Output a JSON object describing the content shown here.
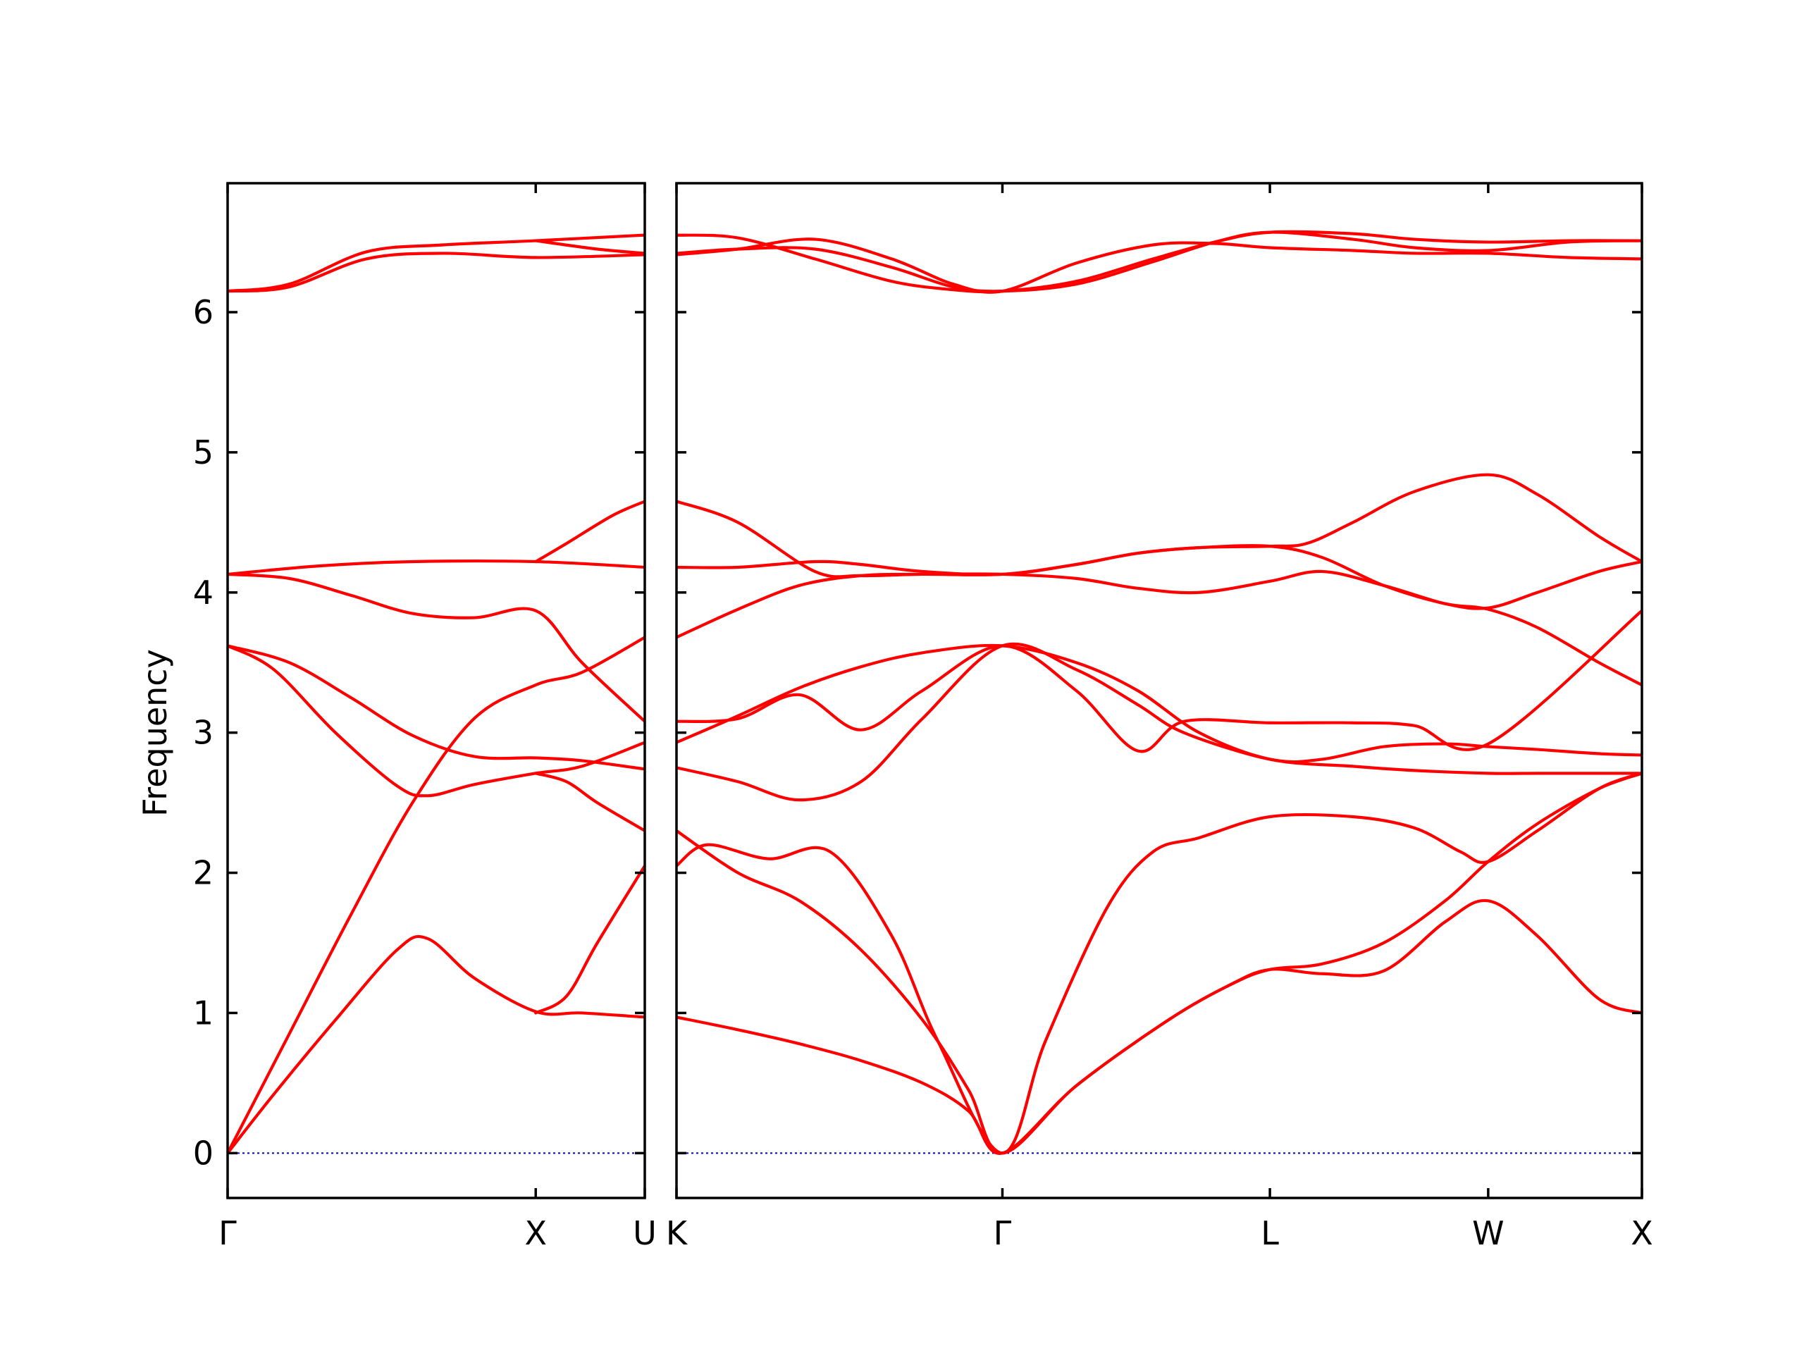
{
  "chart_data": {
    "type": "line",
    "ylabel": "Frequency",
    "xlabel": "",
    "ylim": [
      -0.32,
      6.92
    ],
    "yticks": [
      0,
      1,
      2,
      3,
      4,
      5,
      6
    ],
    "grid": false,
    "band_color": "#ff0000",
    "zero_line_color": "#0000cc",
    "segments": [
      {
        "labels": [
          {
            "x": 0,
            "text": "Γ"
          },
          {
            "x": 1.0,
            "text": "X"
          },
          {
            "x": 1.354,
            "text": "U"
          }
        ],
        "xlim": [
          0,
          1.354
        ],
        "bands": [
          {
            "x": [
              0,
              0.15,
              0.35,
              0.55,
              0.65,
              0.8,
              1.0,
              1.15,
              1.354
            ],
            "y": [
              0,
              0.42,
              0.95,
              1.45,
              1.53,
              1.25,
              1.01,
              1.0,
              0.97
            ]
          },
          {
            "x": [
              0,
              0.2,
              0.4,
              0.6,
              0.8,
              1.0,
              1.15,
              1.354
            ],
            "y": [
              0,
              0.85,
              1.7,
              2.5,
              3.1,
              3.34,
              3.43,
              3.68
            ]
          },
          {
            "x": [
              0,
              0.15,
              0.35,
              0.55,
              0.65,
              0.8,
              1.0,
              1.15,
              1.354
            ],
            "y": [
              3.62,
              3.45,
              3.0,
              2.62,
              2.55,
              2.63,
              2.71,
              2.76,
              2.93
            ]
          },
          {
            "x": [
              0,
              0.2,
              0.4,
              0.6,
              0.8,
              1.0,
              1.15,
              1.354
            ],
            "y": [
              3.62,
              3.5,
              3.25,
              2.98,
              2.83,
              2.82,
              2.8,
              2.74
            ]
          },
          {
            "x": [
              0,
              0.2,
              0.4,
              0.6,
              0.8,
              1.0,
              1.15,
              1.354
            ],
            "y": [
              4.13,
              4.1,
              3.98,
              3.85,
              3.82,
              3.87,
              3.5,
              3.08
            ]
          },
          {
            "x": [
              0,
              0.3,
              0.6,
              1.0,
              1.354
            ],
            "y": [
              4.13,
              4.19,
              4.22,
              4.22,
              4.18
            ]
          },
          {
            "x": [
              0,
              0.2,
              0.45,
              0.7,
              1.0,
              1.354
            ],
            "y": [
              6.15,
              6.2,
              6.43,
              6.48,
              6.51,
              6.55
            ]
          },
          {
            "x": [
              0,
              0.2,
              0.45,
              0.7,
              1.0,
              1.354
            ],
            "y": [
              6.15,
              6.18,
              6.38,
              6.42,
              6.39,
              6.41
            ]
          },
          {
            "x": [
              1.0,
              1.1,
              1.2,
              1.354
            ],
            "y": [
              1.0,
              1.12,
              1.5,
              2.05
            ]
          },
          {
            "x": [
              1.0,
              1.1,
              1.2,
              1.354
            ],
            "y": [
              2.71,
              2.65,
              2.5,
              2.3
            ]
          },
          {
            "x": [
              1.0,
              1.1,
              1.25,
              1.354
            ],
            "y": [
              4.22,
              4.35,
              4.55,
              4.65
            ]
          },
          {
            "x": [
              1.0,
              1.2,
              1.354
            ],
            "y": [
              6.51,
              6.45,
              6.42
            ]
          }
        ]
      },
      {
        "labels": [
          {
            "x": 0,
            "text": "K"
          },
          {
            "x": 1.06,
            "text": "Γ"
          },
          {
            "x": 1.93,
            "text": "L"
          },
          {
            "x": 2.64,
            "text": "W"
          },
          {
            "x": 3.14,
            "text": "X"
          }
        ],
        "xlim": [
          0,
          3.14
        ],
        "bands": [
          {
            "x": [
              0,
              0.2,
              0.4,
              0.6,
              0.8,
              0.95,
              1.06,
              1.3,
              1.6,
              1.8,
              1.93,
              2.1,
              2.3,
              2.5,
              2.64,
              2.8,
              3.0,
              3.14
            ],
            "y": [
              0.97,
              0.88,
              0.78,
              0.66,
              0.5,
              0.3,
              0,
              0.48,
              0.95,
              1.2,
              1.31,
              1.35,
              1.5,
              1.8,
              2.08,
              2.35,
              2.6,
              2.71
            ]
          },
          {
            "x": [
              0,
              0.2,
              0.4,
              0.6,
              0.8,
              0.95,
              1.06,
              1.3,
              1.6,
              1.8,
              1.93,
              2.1,
              2.3,
              2.5,
              2.64,
              2.8,
              3.0,
              3.14
            ],
            "y": [
              2.3,
              2.0,
              1.8,
              1.45,
              0.95,
              0.45,
              0,
              0.48,
              0.95,
              1.2,
              1.31,
              1.28,
              1.3,
              1.65,
              1.8,
              1.55,
              1.1,
              1.0
            ]
          },
          {
            "x": [
              0,
              0.1,
              0.3,
              0.5,
              0.7,
              0.85,
              1.06,
              1.2,
              1.4,
              1.55,
              1.7,
              1.93,
              2.2,
              2.4,
              2.55,
              2.64,
              2.8,
              3.0,
              3.14
            ],
            "y": [
              2.05,
              2.2,
              2.1,
              2.15,
              1.55,
              0.8,
              0,
              0.8,
              1.75,
              2.15,
              2.25,
              2.4,
              2.4,
              2.32,
              2.15,
              2.08,
              2.3,
              2.6,
              2.71
            ]
          },
          {
            "x": [
              0,
              0.2,
              0.4,
              0.6,
              0.8,
              1.06,
              1.3,
              1.5,
              1.65,
              1.93,
              2.1,
              2.3,
              2.5,
              2.64,
              2.8,
              3.0,
              3.14
            ],
            "y": [
              2.75,
              2.65,
              2.52,
              2.65,
              3.1,
              3.62,
              3.45,
              3.2,
              3.0,
              2.81,
              2.81,
              2.9,
              2.92,
              2.9,
              2.88,
              2.85,
              2.84
            ]
          },
          {
            "x": [
              0,
              0.2,
              0.4,
              0.6,
              0.8,
              1.06,
              1.3,
              1.5,
              1.65,
              1.93,
              2.2,
              2.4,
              2.64,
              3.14
            ],
            "y": [
              3.08,
              3.1,
              3.27,
              3.02,
              3.3,
              3.62,
              3.3,
              2.87,
              3.08,
              3.07,
              3.07,
              3.05,
              2.92,
              3.87
            ]
          },
          {
            "x": [
              0,
              0.2,
              0.4,
              0.6,
              0.8,
              1.06,
              1.3,
              1.5,
              1.7,
              1.93,
              2.2,
              2.4,
              2.64,
              2.8,
              3.0,
              3.14
            ],
            "y": [
              2.93,
              3.12,
              3.32,
              3.47,
              3.57,
              3.62,
              3.5,
              3.3,
              3.0,
              2.81,
              2.76,
              2.73,
              2.71,
              2.71,
              2.71,
              2.71
            ]
          },
          {
            "x": [
              0,
              0.2,
              0.4,
              0.6,
              0.8,
              1.06,
              1.3,
              1.5,
              1.7,
              1.93,
              2.1,
              2.3,
              2.5,
              2.64,
              2.8,
              3.0,
              3.14
            ],
            "y": [
              3.68,
              3.88,
              4.05,
              4.12,
              4.13,
              4.13,
              4.1,
              4.03,
              4.0,
              4.08,
              4.15,
              4.05,
              3.92,
              3.88,
              3.75,
              3.5,
              3.34
            ]
          },
          {
            "x": [
              0,
              0.2,
              0.45,
              0.6,
              0.8,
              1.06,
              1.3,
              1.5,
              1.7,
              1.93,
              2.1,
              2.3,
              2.5,
              2.64,
              2.8,
              3.0,
              3.14
            ],
            "y": [
              4.65,
              4.5,
              4.15,
              4.12,
              4.13,
              4.13,
              4.2,
              4.28,
              4.32,
              4.33,
              4.25,
              4.05,
              3.92,
              3.89,
              4.0,
              4.15,
              4.22
            ]
          },
          {
            "x": [
              0,
              0.2,
              0.45,
              0.6,
              0.8,
              1.06,
              1.3,
              1.5,
              1.7,
              1.93,
              2.05,
              2.2,
              2.4,
              2.64,
              2.8,
              3.0,
              3.14
            ],
            "y": [
              4.18,
              4.18,
              4.22,
              4.2,
              4.15,
              4.13,
              4.2,
              4.28,
              4.32,
              4.33,
              4.35,
              4.5,
              4.72,
              4.84,
              4.7,
              4.4,
              4.22
            ]
          },
          {
            "x": [
              0,
              0.2,
              0.45,
              0.7,
              0.9,
              1.06,
              1.3,
              1.55,
              1.75,
              1.93,
              2.2,
              2.4,
              2.64,
              2.9,
              3.14
            ],
            "y": [
              6.55,
              6.53,
              6.38,
              6.22,
              6.16,
              6.15,
              6.22,
              6.38,
              6.5,
              6.57,
              6.56,
              6.52,
              6.5,
              6.51,
              6.51
            ]
          },
          {
            "x": [
              0,
              0.2,
              0.45,
              0.7,
              0.9,
              1.06,
              1.3,
              1.55,
              1.75,
              1.93,
              2.2,
              2.4,
              2.64,
              2.9,
              3.14
            ],
            "y": [
              6.41,
              6.45,
              6.52,
              6.38,
              6.2,
              6.15,
              6.35,
              6.48,
              6.49,
              6.46,
              6.44,
              6.42,
              6.42,
              6.39,
              6.38
            ]
          },
          {
            "x": [
              0,
              0.2,
              0.45,
              0.7,
              0.9,
              1.06,
              1.3,
              1.55,
              1.75,
              1.93,
              2.2,
              2.4,
              2.64,
              2.9,
              3.14
            ],
            "y": [
              6.42,
              6.45,
              6.45,
              6.32,
              6.18,
              6.15,
              6.2,
              6.36,
              6.5,
              6.57,
              6.52,
              6.46,
              6.44,
              6.5,
              6.51
            ]
          }
        ]
      }
    ]
  }
}
